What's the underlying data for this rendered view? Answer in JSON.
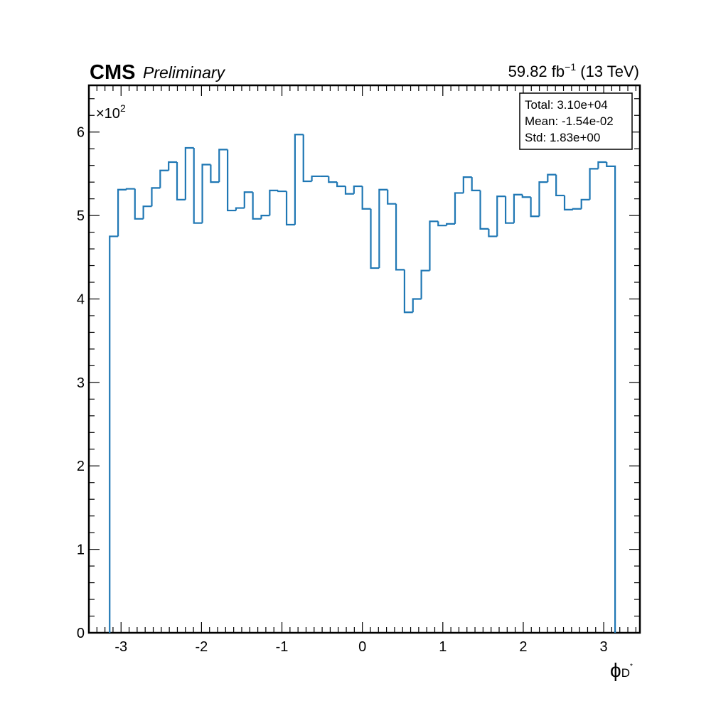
{
  "header": {
    "experiment": "CMS",
    "status": "Preliminary",
    "lumi_value": "59.82",
    "lumi_unit": "fb",
    "lumi_exp": "−1",
    "energy": "(13 TeV)"
  },
  "stats": {
    "total": "Total: 3.10e+04",
    "mean": "Mean: -1.54e-02",
    "std": "Std: 1.83e+00"
  },
  "chart_data": {
    "type": "histogram-step",
    "xlabel_symbol": "ϕ",
    "xlabel_sub": "D",
    "xlabel_sup": "*",
    "y_multiplier_base": "×10",
    "y_multiplier_exp": "2",
    "xlim": [
      -3.4,
      3.45
    ],
    "ylim": [
      0,
      6.56
    ],
    "line_color": "#1f77b4",
    "x_tick_values": [
      -3,
      -2,
      -1,
      0,
      1,
      2,
      3
    ],
    "x_tick_labels": [
      "-3",
      "-2",
      "-1",
      "0",
      "1",
      "2",
      "3"
    ],
    "y_tick_values": [
      0,
      1,
      2,
      3,
      4,
      5,
      6
    ],
    "y_tick_labels": [
      "0",
      "1",
      "2",
      "3",
      "4",
      "5",
      "6"
    ],
    "bin_range": [
      -3.1416,
      3.1416
    ],
    "values": [
      4.75,
      5.31,
      5.32,
      4.96,
      5.11,
      5.33,
      5.54,
      5.64,
      5.19,
      5.81,
      4.91,
      5.61,
      5.4,
      5.79,
      5.06,
      5.09,
      5.28,
      4.96,
      5.0,
      5.3,
      5.29,
      4.89,
      5.97,
      5.41,
      5.47,
      5.47,
      5.4,
      5.35,
      5.26,
      5.35,
      5.08,
      4.37,
      5.31,
      5.14,
      4.35,
      3.84,
      4.0,
      4.34,
      4.93,
      4.88,
      4.9,
      5.27,
      5.46,
      5.3,
      4.84,
      4.75,
      5.23,
      4.91,
      5.25,
      5.22,
      4.99,
      5.4,
      5.49,
      5.24,
      5.07,
      5.08,
      5.19,
      5.56,
      5.64,
      5.59
    ]
  }
}
